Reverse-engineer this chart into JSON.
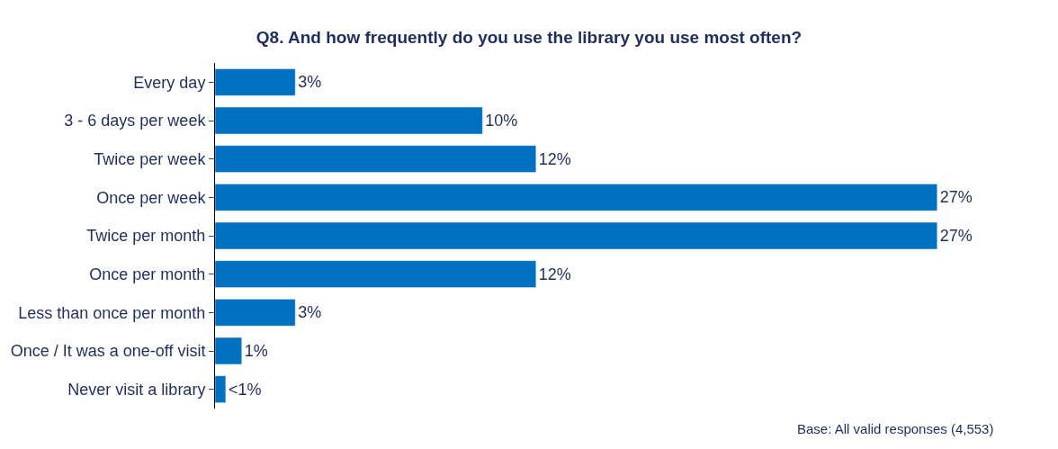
{
  "chart_data": {
    "type": "bar",
    "orientation": "horizontal",
    "title": "Q8. And how frequently do you use the library you use most often?",
    "categories": [
      "Every day",
      "3 - 6 days per week",
      "Twice per week",
      "Once per week",
      "Twice per month",
      "Once per month",
      "Less than once per month",
      "Once / It was a one-off visit",
      "Never visit a library"
    ],
    "values": [
      3,
      10,
      12,
      27,
      27,
      12,
      3,
      1,
      0.4
    ],
    "value_labels": [
      "3%",
      "10%",
      "12%",
      "27%",
      "27%",
      "12%",
      "3%",
      "1%",
      "<1%"
    ],
    "color": "#0070c0",
    "legend": false,
    "annotations": [
      "Base: All valid responses (4,553)"
    ]
  }
}
